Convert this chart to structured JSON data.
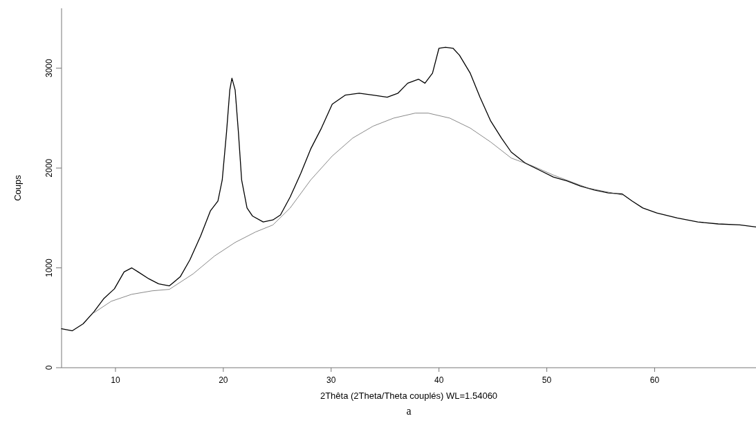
{
  "chart_data": {
    "type": "line",
    "xlabel": "2Thêta (2Theta/Theta couplés) WL=1.54060",
    "ylabel": "Coups",
    "annotations": [
      "a"
    ],
    "xlim": [
      5,
      69.4
    ],
    "xticks": [
      10,
      20,
      30,
      40,
      50,
      60
    ],
    "ylim": [
      0,
      3600
    ],
    "yticks": [
      0,
      1000,
      2000,
      3000
    ],
    "marker": "none",
    "series": [
      {
        "color": "#000000",
        "x": [
          5,
          6,
          7,
          8,
          8.9,
          9.9,
          10.8,
          11.5,
          12.1,
          13.1,
          14,
          15,
          16,
          16.9,
          17.9,
          18.8,
          19.5,
          19.9,
          20.3,
          20.6,
          20.8,
          21.1,
          21.4,
          21.7,
          22.2,
          22.7,
          23.7,
          24.6,
          25.3,
          26.2,
          27.2,
          28.1,
          29.1,
          30.1,
          31.3,
          32.6,
          33.9,
          35.2,
          36.2,
          37.1,
          38.1,
          38.7,
          39.4,
          40,
          40.6,
          41.3,
          41.9,
          42.9,
          43.8,
          44.8,
          45.8,
          46.7,
          48,
          49.3,
          50.6,
          51.9,
          53.1,
          54.4,
          55.7,
          57,
          57.9,
          58.9,
          60.2,
          62.1,
          64,
          65.9,
          67.9,
          69.4
        ],
        "values": [
          390,
          370,
          440,
          560,
          690,
          790,
          960,
          1000,
          960,
          890,
          840,
          820,
          910,
          1080,
          1320,
          1570,
          1670,
          1880,
          2360,
          2780,
          2900,
          2780,
          2360,
          1880,
          1600,
          1520,
          1460,
          1480,
          1530,
          1710,
          1950,
          2190,
          2400,
          2640,
          2730,
          2750,
          2730,
          2710,
          2750,
          2850,
          2890,
          2850,
          2950,
          3200,
          3210,
          3200,
          3130,
          2950,
          2710,
          2470,
          2300,
          2160,
          2050,
          1980,
          1910,
          1870,
          1820,
          1780,
          1750,
          1740,
          1670,
          1600,
          1550,
          1500,
          1460,
          1440,
          1430,
          1410
        ]
      },
      {
        "color": "#555555",
        "x": [
          8,
          9.6,
          11.5,
          13.4,
          15,
          17.2,
          19.2,
          21.1,
          23,
          24.6,
          26.2,
          28.1,
          30.1,
          32,
          33.9,
          35.8,
          37.8,
          39,
          41,
          42.9,
          44.8,
          46.7,
          48.7,
          50.6,
          53.8,
          57
        ],
        "values": [
          550,
          665,
          735,
          770,
          785,
          940,
          1120,
          1255,
          1360,
          1430,
          1600,
          1880,
          2120,
          2300,
          2420,
          2500,
          2550,
          2550,
          2500,
          2400,
          2260,
          2100,
          2020,
          1930,
          1800,
          1730
        ]
      }
    ]
  }
}
